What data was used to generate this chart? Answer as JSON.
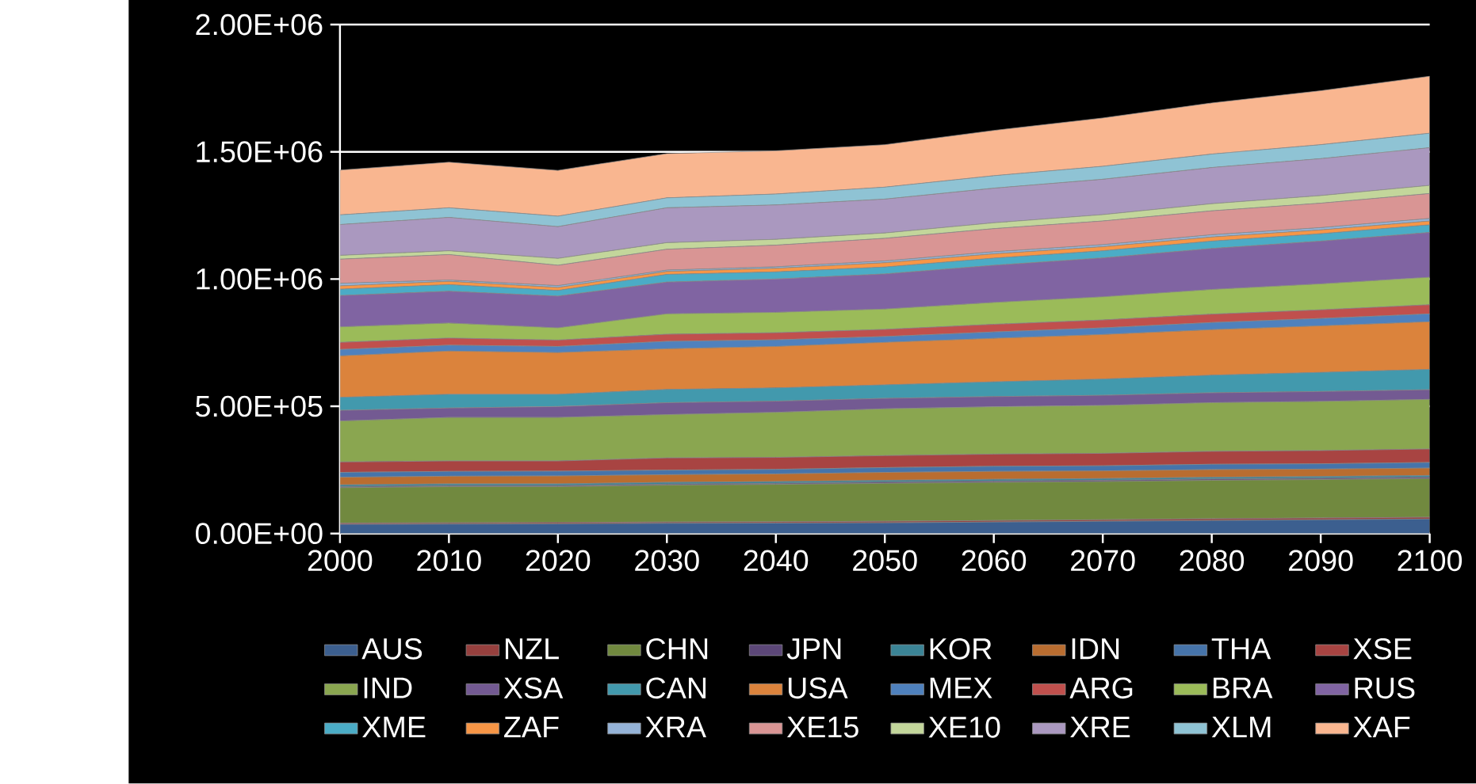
{
  "chart_data": {
    "type": "area",
    "stacked": true,
    "x": [
      2000,
      2010,
      2020,
      2030,
      2040,
      2050,
      2060,
      2070,
      2080,
      2090,
      2100
    ],
    "xlim": [
      2000,
      2100
    ],
    "xticks": [
      2000,
      2010,
      2020,
      2030,
      2040,
      2050,
      2060,
      2070,
      2080,
      2090,
      2100
    ],
    "ylim": [
      0,
      2000000
    ],
    "yticks": [
      {
        "value": 0,
        "label": "0.00E+00"
      },
      {
        "value": 500000,
        "label": "5.00E+05"
      },
      {
        "value": 1000000,
        "label": "1.00E+06"
      },
      {
        "value": 1500000,
        "label": "1.50E+06"
      },
      {
        "value": 2000000,
        "label": "2.00E+06"
      }
    ],
    "grid": "y",
    "legend": "bottom",
    "series": [
      {
        "name": "AUS",
        "color": "#3c5f8f",
        "values": [
          36000,
          37000,
          38000,
          40000,
          41000,
          42000,
          45000,
          48000,
          51000,
          54000,
          57000
        ]
      },
      {
        "name": "NZL",
        "color": "#96403e",
        "values": [
          5000,
          5000,
          5000,
          5000,
          5000,
          6000,
          6000,
          6000,
          7000,
          7000,
          7000
        ]
      },
      {
        "name": "CHN",
        "color": "#71893f",
        "values": [
          139000,
          142000,
          141000,
          145000,
          147000,
          149000,
          150000,
          150000,
          151000,
          151000,
          152000
        ]
      },
      {
        "name": "JPN",
        "color": "#5c4778",
        "values": [
          4000,
          4000,
          4000,
          4000,
          4000,
          5000,
          5000,
          5000,
          5000,
          5000,
          5000
        ]
      },
      {
        "name": "KOR",
        "color": "#3b8496",
        "values": [
          7000,
          7000,
          7000,
          7000,
          7000,
          7000,
          7000,
          7000,
          7000,
          7000,
          7000
        ]
      },
      {
        "name": "IDN",
        "color": "#b96d30",
        "values": [
          30000,
          30000,
          31000,
          30000,
          30000,
          31000,
          31000,
          30000,
          30000,
          29000,
          29000
        ]
      },
      {
        "name": "THA",
        "color": "#4674aa",
        "values": [
          19000,
          19000,
          19000,
          18000,
          18000,
          19000,
          20000,
          20000,
          21000,
          21000,
          22000
        ]
      },
      {
        "name": "XSE",
        "color": "#a84442",
        "values": [
          41000,
          41000,
          40000,
          48000,
          47000,
          47000,
          48000,
          49000,
          51000,
          52000,
          53000
        ]
      },
      {
        "name": "IND",
        "color": "#8aa650",
        "values": [
          161000,
          171000,
          171000,
          170000,
          177000,
          184000,
          186000,
          188000,
          191000,
          193000,
          195000
        ]
      },
      {
        "name": "XSA",
        "color": "#735a92",
        "values": [
          42000,
          37000,
          43000,
          47000,
          44000,
          41000,
          40000,
          40000,
          39000,
          39000,
          38000
        ]
      },
      {
        "name": "CAN",
        "color": "#4299ad",
        "values": [
          51000,
          54000,
          48000,
          52000,
          52000,
          53000,
          58000,
          64000,
          69000,
          75000,
          80000
        ]
      },
      {
        "name": "USA",
        "color": "#db833c",
        "values": [
          163000,
          170000,
          164000,
          160000,
          163000,
          167000,
          171000,
          175000,
          179000,
          183000,
          187000
        ]
      },
      {
        "name": "MEX",
        "color": "#4f81bd",
        "values": [
          25000,
          23000,
          24000,
          29000,
          26000,
          23000,
          25000,
          26000,
          28000,
          29000,
          31000
        ]
      },
      {
        "name": "ARG",
        "color": "#c0504d",
        "values": [
          28000,
          28000,
          25000,
          28000,
          28000,
          28000,
          30000,
          31000,
          33000,
          34000,
          36000
        ]
      },
      {
        "name": "BRA",
        "color": "#9bbb59",
        "values": [
          61000,
          59000,
          48000,
          80000,
          80000,
          80000,
          86000,
          91000,
          97000,
          102000,
          108000
        ]
      },
      {
        "name": "RUS",
        "color": "#8064a2",
        "values": [
          123000,
          125000,
          125000,
          125000,
          131000,
          138000,
          146000,
          153000,
          161000,
          168000,
          176000
        ]
      },
      {
        "name": "XME",
        "color": "#4bacc6",
        "values": [
          25000,
          26000,
          22000,
          30000,
          28000,
          27000,
          28000,
          28000,
          29000,
          29000,
          30000
        ]
      },
      {
        "name": "ZAF",
        "color": "#f79646",
        "values": [
          13000,
          13000,
          12000,
          12000,
          14000,
          17000,
          17000,
          16000,
          16000,
          15000,
          15000
        ]
      },
      {
        "name": "XRA",
        "color": "#95b3d7",
        "values": [
          10000,
          5000,
          7000,
          5000,
          6000,
          7000,
          8000,
          8000,
          9000,
          9000,
          10000
        ]
      },
      {
        "name": "XE15",
        "color": "#d99594",
        "values": [
          95000,
          100000,
          80000,
          82000,
          85000,
          89000,
          91000,
          93000,
          94000,
          96000,
          98000
        ]
      },
      {
        "name": "XE10",
        "color": "#c3d69b",
        "values": [
          15000,
          15000,
          27000,
          26000,
          23000,
          21000,
          23000,
          25000,
          28000,
          30000,
          32000
        ]
      },
      {
        "name": "XRE",
        "color": "#aa98bf",
        "values": [
          121000,
          131000,
          125000,
          137000,
          135000,
          133000,
          136000,
          139000,
          142000,
          145000,
          148000
        ]
      },
      {
        "name": "XLM",
        "color": "#8fc3d4",
        "values": [
          38000,
          38000,
          41000,
          39000,
          43000,
          47000,
          49000,
          51000,
          53000,
          55000,
          57000
        ]
      },
      {
        "name": "XAF",
        "color": "#f9b690",
        "values": [
          176000,
          179000,
          180000,
          174000,
          170000,
          167000,
          178000,
          190000,
          201000,
          212000,
          224000
        ]
      }
    ]
  }
}
